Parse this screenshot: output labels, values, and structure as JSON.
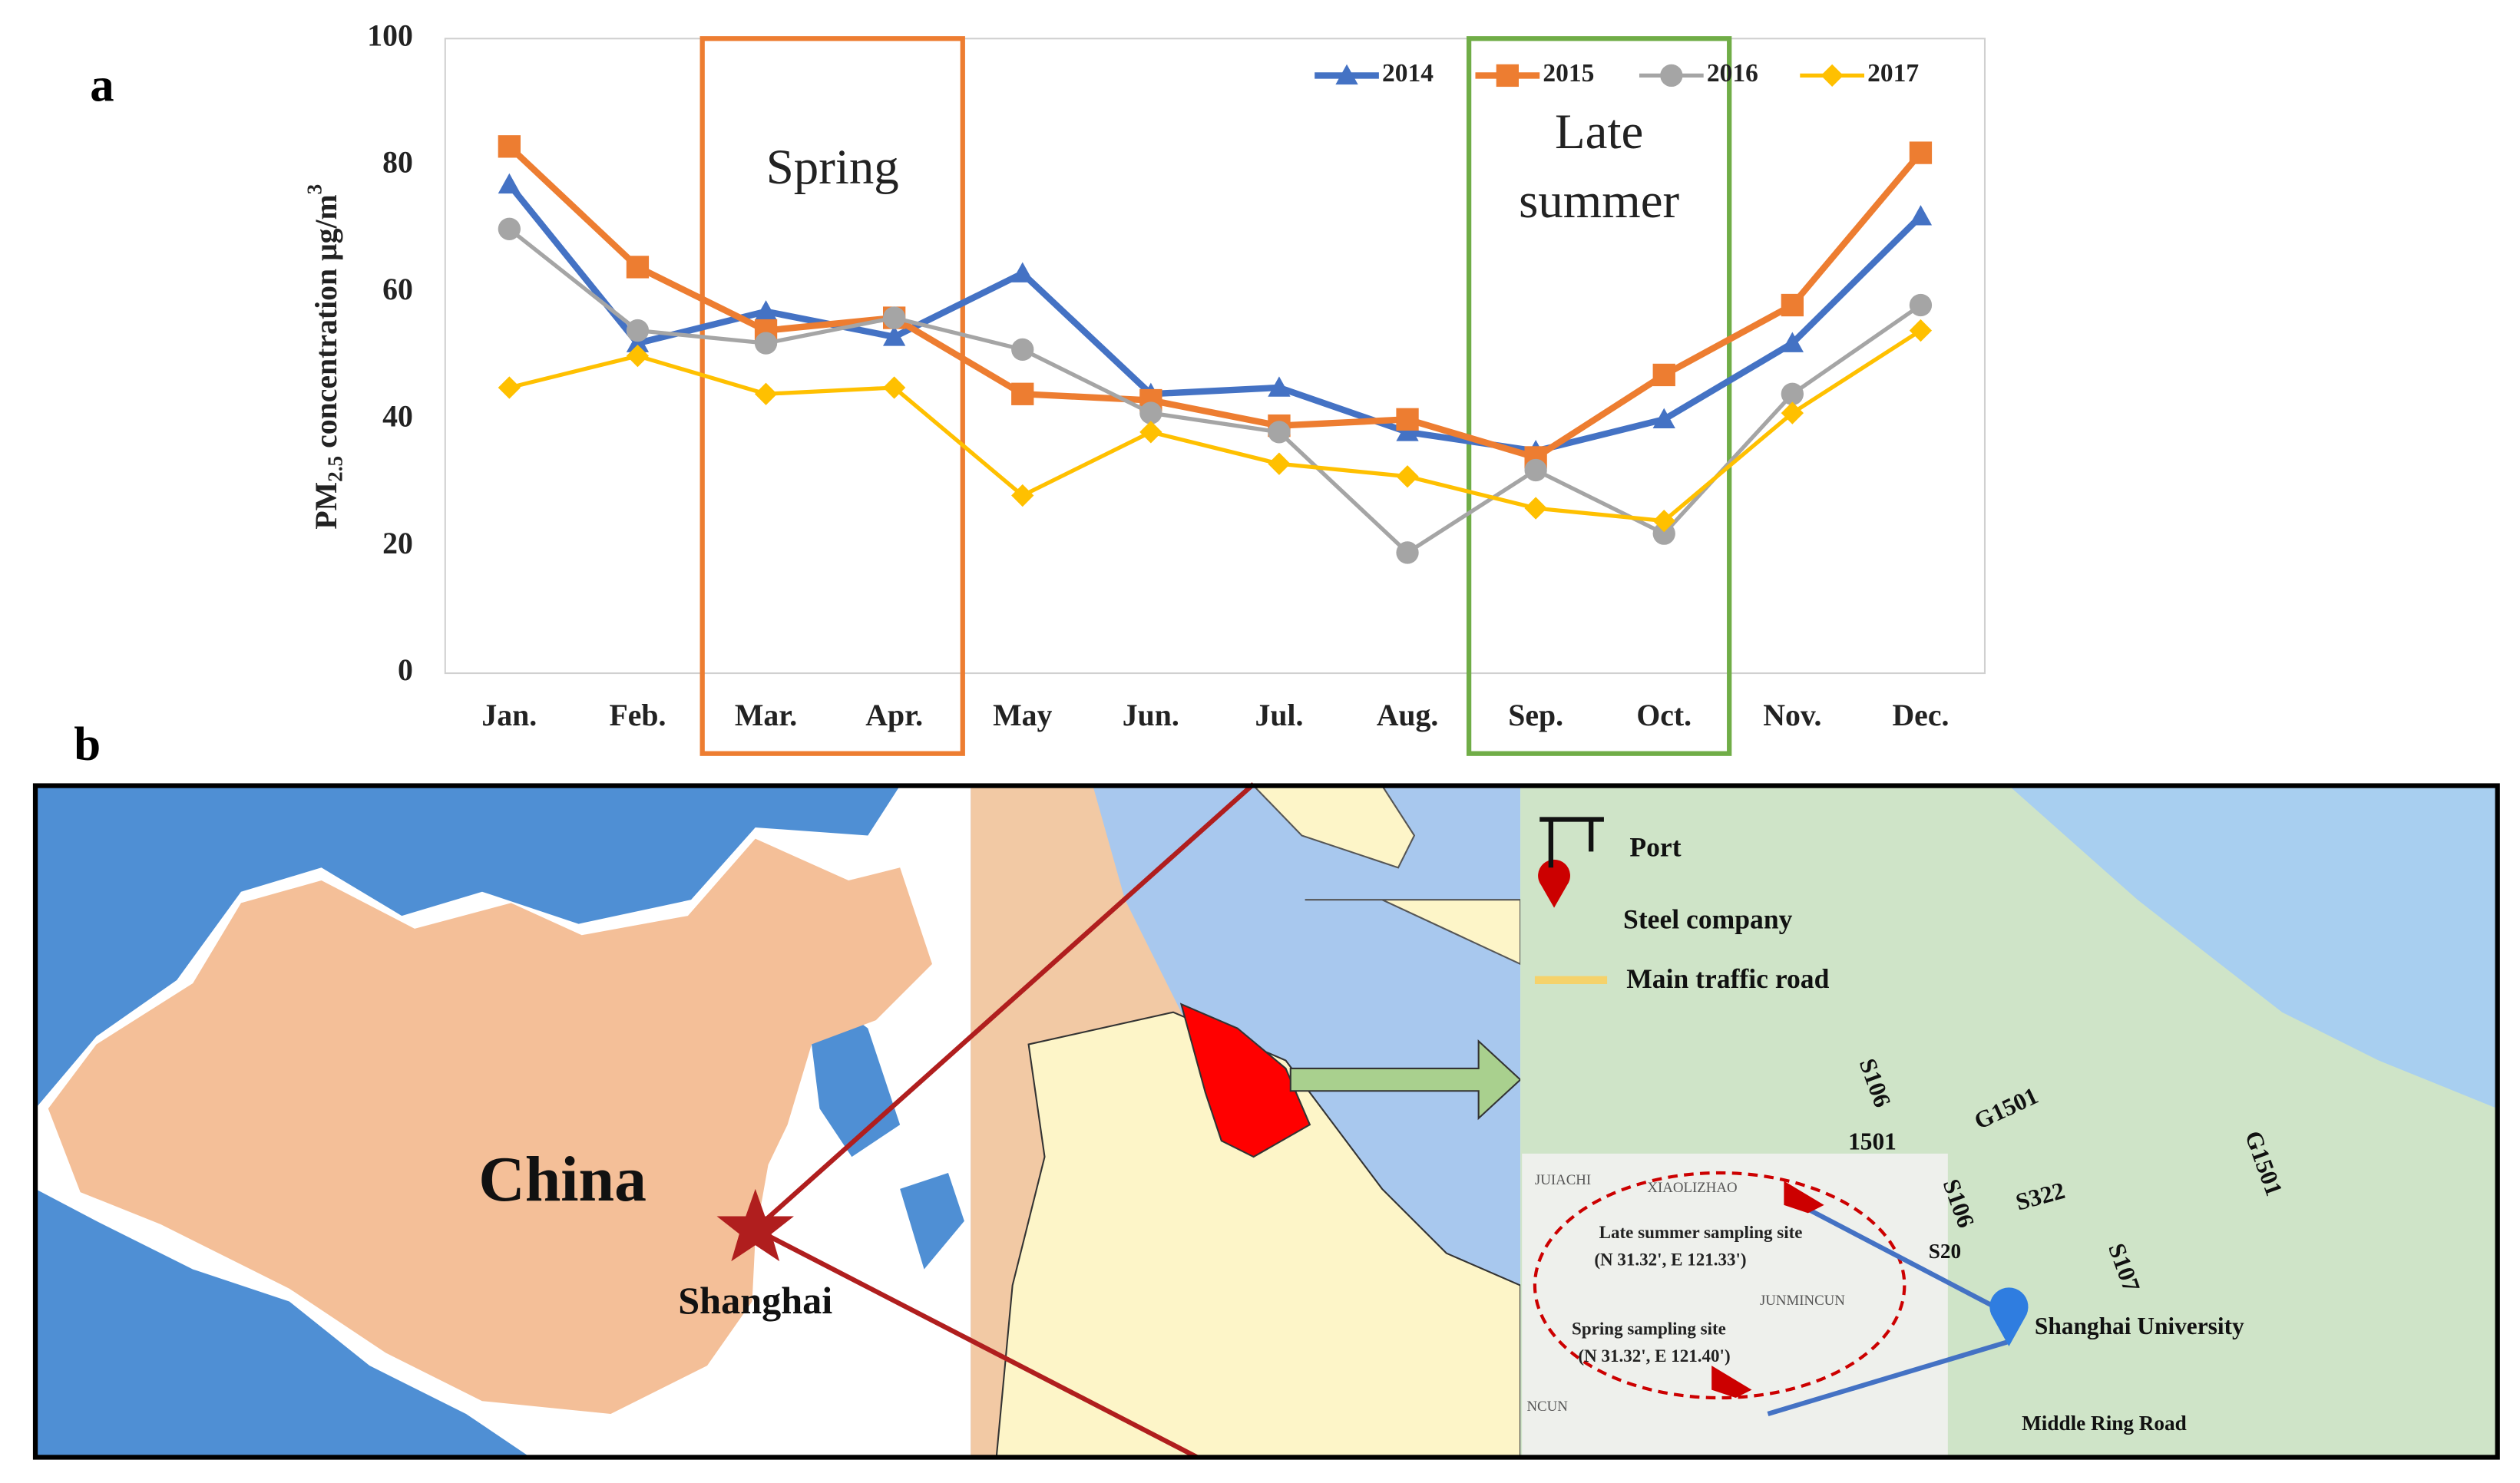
{
  "chart_data": {
    "type": "line",
    "ylabel_parts": [
      "PM",
      "2.5",
      " concentration  μg/m",
      "3"
    ],
    "categories": [
      "Jan.",
      "Feb.",
      "Mar.",
      "Apr.",
      "May",
      "Jun.",
      "Jul.",
      "Aug.",
      "Sep.",
      "Oct.",
      "Nov.",
      "Dec."
    ],
    "series": [
      {
        "name": "2014",
        "color": "#4472c4",
        "marker": "triangle",
        "values": [
          77,
          52,
          57,
          53,
          63,
          44,
          45,
          38,
          35,
          40,
          52,
          72
        ]
      },
      {
        "name": "2015",
        "color": "#ed7d31",
        "marker": "square",
        "values": [
          83,
          64,
          54,
          56,
          44,
          43,
          39,
          40,
          34,
          47,
          58,
          82
        ]
      },
      {
        "name": "2016",
        "color": "#a5a5a5",
        "marker": "circle",
        "values": [
          70,
          54,
          52,
          56,
          51,
          41,
          38,
          19,
          32,
          22,
          44,
          58
        ]
      },
      {
        "name": "2017",
        "color": "#ffc000",
        "marker": "diamond",
        "values": [
          45,
          50,
          44,
          45,
          28,
          38,
          33,
          31,
          26,
          24,
          41,
          54
        ]
      }
    ],
    "ylim": [
      0,
      100
    ],
    "yticks": [
      0,
      20,
      40,
      60,
      80,
      100
    ],
    "grid": false,
    "legend": "top-right",
    "annotations": [
      {
        "lines": [
          "Spring"
        ],
        "color": "#ed7d31"
      },
      {
        "lines": [
          "Late",
          "summer"
        ],
        "color": "#70ad47"
      }
    ]
  },
  "panel_labels": [
    "a",
    "b"
  ],
  "map": {
    "china": "China",
    "shanghai": "Shanghai",
    "legend": [
      "Port",
      "Steel company",
      "Main traffic road"
    ],
    "roads": [
      "S106",
      "G1501",
      "1501",
      "S106",
      "S322",
      "G1501",
      "S107",
      "S20"
    ],
    "late_site": "Late summer sampling site",
    "late_coord": "(N 31.32', E 121.33')",
    "spring_site": "Spring sampling site",
    "spring_coord": "(N 31.32', E 121.40')",
    "university": "Shanghai University",
    "ring_road": "Middle Ring Road",
    "inset_places": [
      "XIAOLIZHAO",
      "JUIACHI",
      "JUNMINCUN",
      "NCUN"
    ]
  }
}
